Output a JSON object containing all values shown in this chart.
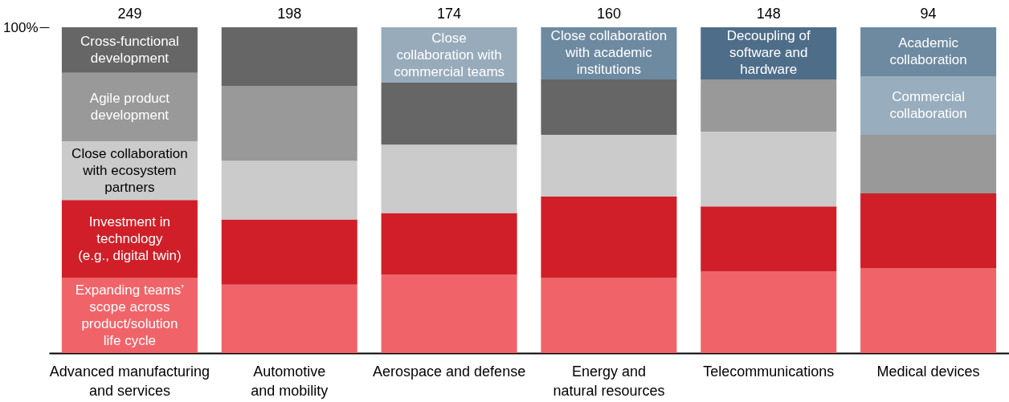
{
  "chart_data": {
    "type": "bar",
    "stacked": true,
    "categories": [
      "Advanced manufacturing\nand services",
      "Automotive\nand mobility",
      "Aerospace and defense",
      "Energy and\nnatural resources",
      "Telecommunications",
      "Medical devices"
    ],
    "series": [
      {
        "colors": [
          "#f06469",
          "#f06469",
          "#f06469",
          "#f06469",
          "#f06469",
          "#f06469"
        ],
        "values": [
          23,
          21,
          24,
          23,
          25,
          26
        ],
        "value_labels": [
          "Expanding teams’\nscope across\nproduct/solution\nlife cycle",
          null,
          null,
          null,
          null,
          null
        ]
      },
      {
        "colors": [
          "#d01f28",
          "#d01f28",
          "#d01f28",
          "#d01f28",
          "#d01f28",
          "#d01f28"
        ],
        "values": [
          24,
          20,
          19,
          25,
          20,
          23
        ],
        "value_labels": [
          "Investment in\ntechnology\n(e.g., digital twin)",
          null,
          null,
          null,
          null,
          null
        ]
      },
      {
        "colors": [
          "#cbcbcb",
          "#cbcbcb",
          "#cbcbcb",
          "#cbcbcb",
          "#cbcbcb",
          "#999999"
        ],
        "values": [
          18,
          18,
          21,
          19,
          23,
          18
        ],
        "value_labels": [
          "Close collaboration\nwith ecosystem\npartners",
          null,
          null,
          null,
          null,
          null
        ]
      },
      {
        "colors": [
          "#999999",
          "#999999",
          "#666666",
          "#666666",
          "#999999",
          "#98adbd"
        ],
        "values": [
          21,
          23,
          19,
          17,
          16,
          18
        ],
        "value_labels": [
          "Agile product\ndevelopment",
          null,
          null,
          null,
          null,
          "Commercial\ncollaboration"
        ]
      },
      {
        "colors": [
          "#666666",
          "#666666",
          "#98abbb",
          "#6e8aa1",
          "#4e6d89",
          "#6e8aa1"
        ],
        "values": [
          14,
          18,
          17,
          16,
          16,
          15
        ],
        "value_labels": [
          "Cross-functional\ndevelopment",
          null,
          "Close\ncollaboration with\ncommercial teams",
          "Close collaboration\nwith academic\ninstitutions",
          "Decoupling of\nsoftware and\nhardware",
          "Academic\ncollaboration"
        ]
      }
    ],
    "ylim": [
      0,
      100
    ],
    "yticks": [
      {
        "value": 100,
        "label": "100%"
      }
    ],
    "grid": false,
    "annotations": [
      {
        "text": "249",
        "x": "Advanced manufacturing\nand services",
        "y": 100
      },
      {
        "text": "198",
        "x": "Automotive\nand mobility",
        "y": 100
      },
      {
        "text": "174",
        "x": "Aerospace and defense",
        "y": 100
      },
      {
        "text": "160",
        "x": "Energy and\nnatural resources",
        "y": 100
      },
      {
        "text": "148",
        "x": "Telecommunications",
        "y": 100
      },
      {
        "text": "94",
        "x": "Medical devices",
        "y": 100
      }
    ]
  }
}
